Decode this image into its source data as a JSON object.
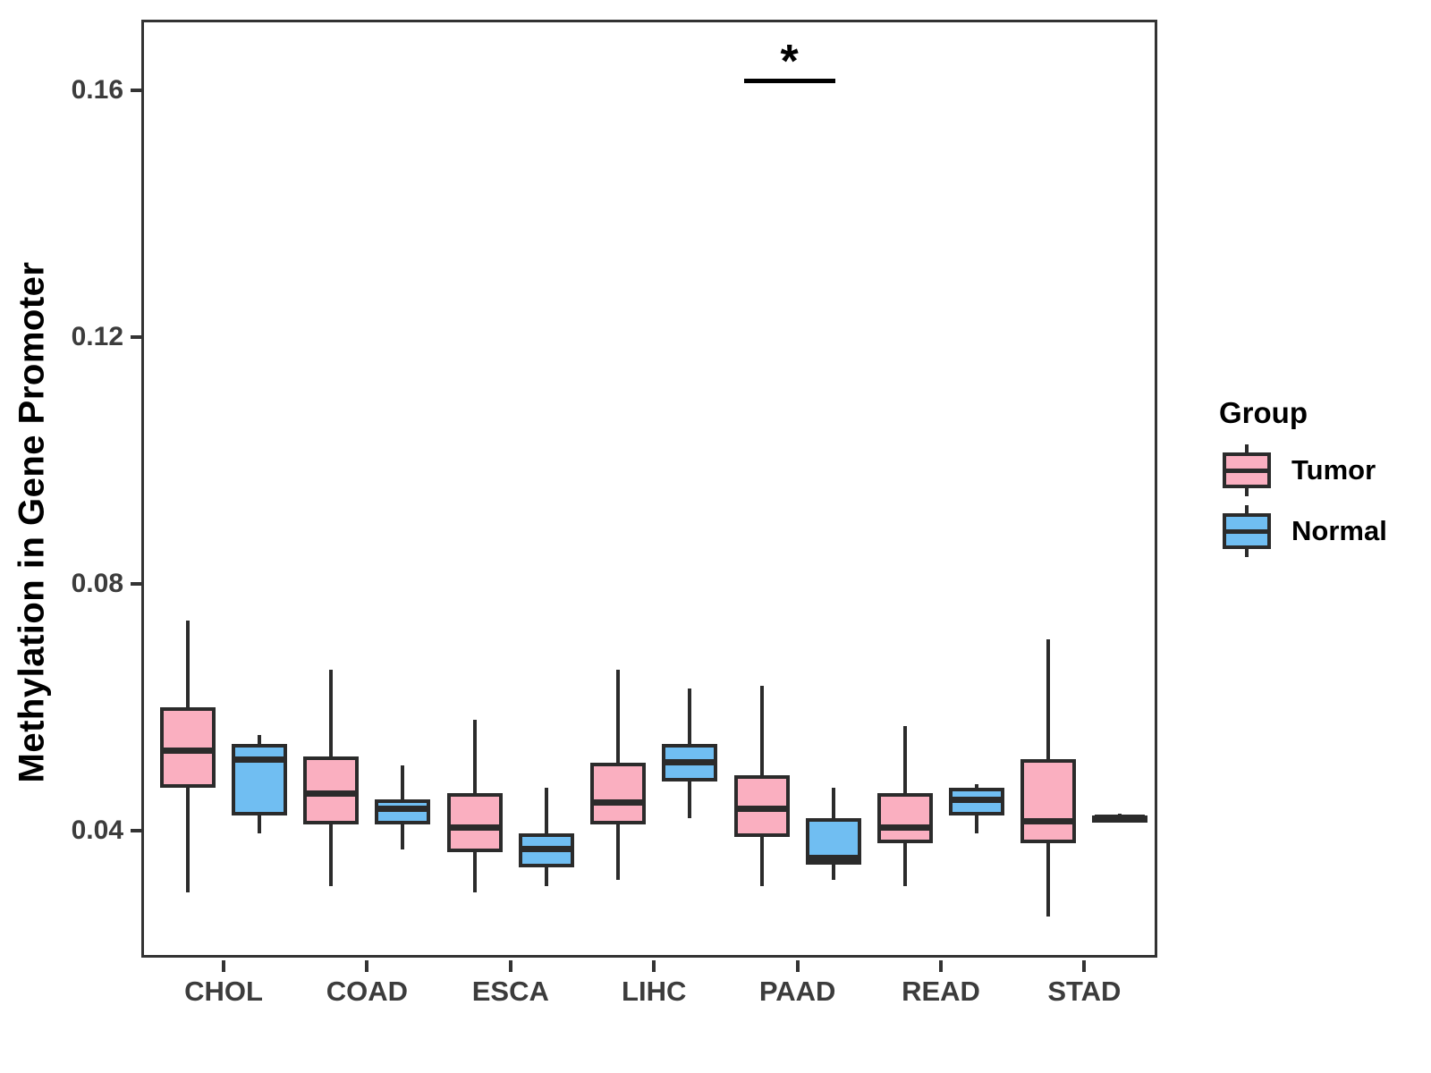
{
  "colors": {
    "tumor_fill": "#FAAFC0",
    "normal_fill": "#70BEF2",
    "box_border": "#2B2B2B",
    "axis_line": "#333333",
    "tick_label": "#3C3C3C",
    "title_text": "#000000"
  },
  "chart_data": {
    "type": "boxplot",
    "title": "",
    "xlabel": "",
    "ylabel": "Methylation in Gene Promoter",
    "grid": "off",
    "legend_position": "right",
    "categories": [
      "CHOL",
      "COAD",
      "ESCA",
      "LIHC",
      "PAAD",
      "READ",
      "STAD"
    ],
    "ylim": [
      0.0194,
      0.1714
    ],
    "yticks": [
      {
        "value": 0.04,
        "label": "0.04"
      },
      {
        "value": 0.08,
        "label": "0.08"
      },
      {
        "value": 0.12,
        "label": "0.12"
      },
      {
        "value": 0.16,
        "label": "0.16"
      }
    ],
    "series": [
      {
        "name": "Tumor",
        "fill": "#FAAFC0",
        "boxes": [
          {
            "category": "CHOL",
            "low": 0.03,
            "q1": 0.047,
            "median": 0.053,
            "q3": 0.06,
            "high": 0.074
          },
          {
            "category": "COAD",
            "low": 0.031,
            "q1": 0.041,
            "median": 0.046,
            "q3": 0.052,
            "high": 0.066
          },
          {
            "category": "ESCA",
            "low": 0.03,
            "q1": 0.0365,
            "median": 0.0405,
            "q3": 0.046,
            "high": 0.058
          },
          {
            "category": "LIHC",
            "low": 0.032,
            "q1": 0.041,
            "median": 0.0445,
            "q3": 0.051,
            "high": 0.066
          },
          {
            "category": "PAAD",
            "low": 0.031,
            "q1": 0.039,
            "median": 0.0435,
            "q3": 0.049,
            "high": 0.0635
          },
          {
            "category": "READ",
            "low": 0.031,
            "q1": 0.038,
            "median": 0.0405,
            "q3": 0.046,
            "high": 0.057
          },
          {
            "category": "STAD",
            "low": 0.026,
            "q1": 0.038,
            "median": 0.0415,
            "q3": 0.0515,
            "high": 0.071
          }
        ]
      },
      {
        "name": "Normal",
        "fill": "#70BEF2",
        "boxes": [
          {
            "category": "CHOL",
            "low": 0.0395,
            "q1": 0.0425,
            "median": 0.0515,
            "q3": 0.054,
            "high": 0.0555
          },
          {
            "category": "COAD",
            "low": 0.037,
            "q1": 0.041,
            "median": 0.0435,
            "q3": 0.045,
            "high": 0.0505
          },
          {
            "category": "ESCA",
            "low": 0.031,
            "q1": 0.034,
            "median": 0.037,
            "q3": 0.0395,
            "high": 0.047
          },
          {
            "category": "LIHC",
            "low": 0.042,
            "q1": 0.048,
            "median": 0.051,
            "q3": 0.054,
            "high": 0.063
          },
          {
            "category": "PAAD",
            "low": 0.032,
            "q1": 0.0345,
            "median": 0.0355,
            "q3": 0.042,
            "high": 0.047
          },
          {
            "category": "READ",
            "low": 0.0395,
            "q1": 0.0425,
            "median": 0.045,
            "q3": 0.047,
            "high": 0.0475
          },
          {
            "category": "STAD",
            "low": 0.0415,
            "q1": 0.0419,
            "median": 0.0421,
            "q3": 0.0424,
            "high": 0.0427
          }
        ]
      }
    ],
    "legend": {
      "title": "Group",
      "entries": [
        {
          "label": "Tumor",
          "fill": "#FAAFC0"
        },
        {
          "label": "Normal",
          "fill": "#70BEF2"
        }
      ]
    },
    "significance": {
      "label": "*",
      "group": "PAAD",
      "between": [
        "Tumor",
        "Normal"
      ],
      "bar_value": 0.1615,
      "label_value": 0.169
    }
  }
}
